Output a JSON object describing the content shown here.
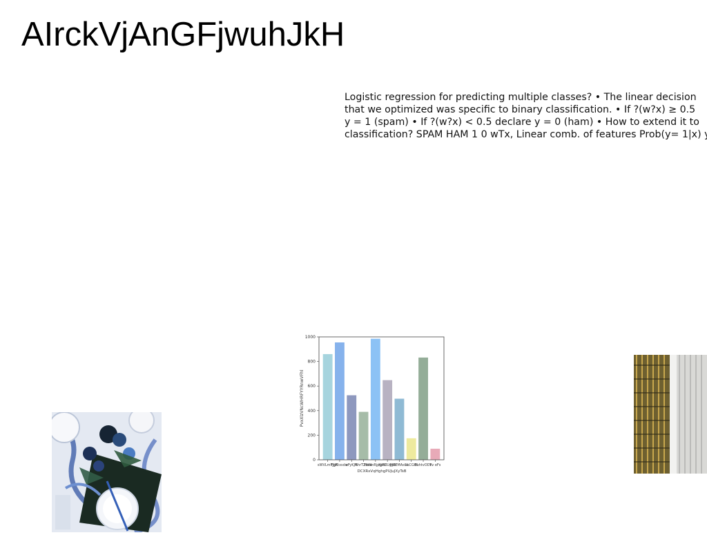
{
  "page": {
    "title": "AIrckVjAnGFjwuhJkH",
    "paragraph_lines": [
      "Logistic regression for predicting multiple classes? • The linear decision",
      "that we optimized was specific to binary classification. • If ?(w?x) ≥ 0.5",
      "y = 1 (spam) • If ?(w?x) < 0.5 declare y = 0 (ham) • How to extend it to",
      "classification? SPAM HAM 1 0 wTx, Linear comb. of features Prob(y= 1|x) y"
    ]
  },
  "images": {
    "left_photo": "table-setting-photo",
    "right_photo": "building-facade-photo"
  },
  "chart_data": {
    "type": "bar",
    "xlabel": "DCXRxVqHghgPUJuJXyTsB",
    "ylabel": "PvxXlzVNcWHRFYYRnwVFhl",
    "ylim": [
      0,
      1000
    ],
    "yticks": [
      0,
      200,
      400,
      600,
      800,
      1000
    ],
    "categories": [
      "sWVLmFJgK",
      "FjjRtxsdw",
      "eFyKJN",
      "AhrTZdea",
      "FbWnRjpgMC",
      "KpUtUgaN",
      "PJSEMAsCe",
      "aLCGfK",
      "EahtvODn",
      "Tv eFs"
    ],
    "values": [
      860,
      955,
      525,
      390,
      985,
      648,
      497,
      175,
      832,
      90
    ],
    "colors": [
      "#a6d4de",
      "#86b2ec",
      "#8e98be",
      "#a6bca8",
      "#8cc2f5",
      "#b8b2c2",
      "#8fbad4",
      "#eeea9e",
      "#94ad98",
      "#e8aab8"
    ],
    "grid": false
  }
}
